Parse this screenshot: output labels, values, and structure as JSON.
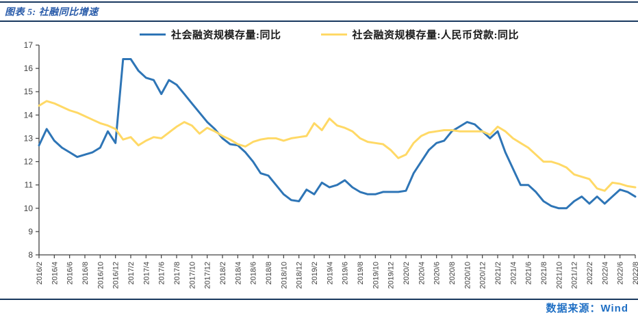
{
  "header": {
    "title": "图表 5: 社融同比增速"
  },
  "footer": {
    "source": "数据来源：Wind"
  },
  "colors": {
    "title_text": "#2A5CAA",
    "footer_text": "#1F6FC4",
    "rule": "#17375E",
    "axis_line": "#404040",
    "tick_text": "#404040",
    "series1": "#2E75B6",
    "series2": "#FFD966"
  },
  "chart_data": {
    "type": "line",
    "title": "图表 5: 社融同比增速",
    "xlabel": "",
    "ylabel": "",
    "ylim": [
      8,
      17
    ],
    "y_ticks": [
      8,
      9,
      10,
      11,
      12,
      13,
      14,
      15,
      16,
      17
    ],
    "x_tick_every": 2,
    "grid": false,
    "legend_position": "top",
    "x": [
      "2016/2",
      "2016/3",
      "2016/4",
      "2016/5",
      "2016/6",
      "2016/7",
      "2016/8",
      "2016/9",
      "2016/10",
      "2016/11",
      "2016/12",
      "2017/1",
      "2017/2",
      "2017/3",
      "2017/4",
      "2017/5",
      "2017/6",
      "2017/7",
      "2017/8",
      "2017/9",
      "2017/10",
      "2017/11",
      "2017/12",
      "2018/1",
      "2018/2",
      "2018/3",
      "2018/4",
      "2018/5",
      "2018/6",
      "2018/7",
      "2018/8",
      "2018/9",
      "2018/10",
      "2018/11",
      "2018/12",
      "2019/1",
      "2019/2",
      "2019/3",
      "2019/4",
      "2019/5",
      "2019/6",
      "2019/7",
      "2019/8",
      "2019/9",
      "2019/10",
      "2019/11",
      "2019/12",
      "2020/1",
      "2020/2",
      "2020/3",
      "2020/4",
      "2020/5",
      "2020/6",
      "2020/7",
      "2020/8",
      "2020/9",
      "2020/10",
      "2020/11",
      "2020/12",
      "2021/1",
      "2021/2",
      "2021/3",
      "2021/4",
      "2021/5",
      "2021/6",
      "2021/7",
      "2021/8",
      "2021/9",
      "2021/10",
      "2021/11",
      "2021/12",
      "2022/1",
      "2022/2",
      "2022/3",
      "2022/4",
      "2022/5",
      "2022/6",
      "2022/7",
      "2022/8"
    ],
    "series": [
      {
        "name": "社会融资规模存量:同比",
        "color": "#2E75B6",
        "values": [
          12.7,
          13.4,
          12.9,
          12.6,
          12.4,
          12.2,
          12.3,
          12.4,
          12.6,
          13.3,
          12.8,
          16.4,
          16.4,
          15.9,
          15.6,
          15.5,
          14.9,
          15.5,
          15.3,
          14.9,
          14.5,
          14.1,
          13.7,
          13.4,
          13.0,
          12.75,
          12.7,
          12.4,
          12.0,
          11.5,
          11.4,
          11.0,
          10.6,
          10.35,
          10.3,
          10.8,
          10.6,
          11.1,
          10.9,
          11.0,
          11.2,
          10.9,
          10.7,
          10.6,
          10.6,
          10.7,
          10.7,
          10.7,
          10.75,
          11.5,
          12.0,
          12.5,
          12.8,
          12.9,
          13.3,
          13.5,
          13.7,
          13.6,
          13.3,
          13.0,
          13.3,
          12.4,
          11.7,
          11.0,
          11.0,
          10.7,
          10.3,
          10.1,
          10.0,
          10.0,
          10.3,
          10.5,
          10.2,
          10.5,
          10.2,
          10.5,
          10.8,
          10.7,
          10.5
        ]
      },
      {
        "name": "社会融资规模存量:人民币贷款:同比",
        "color": "#FFD966",
        "values": [
          14.4,
          14.6,
          14.5,
          14.35,
          14.2,
          14.1,
          13.95,
          13.8,
          13.65,
          13.55,
          13.4,
          12.95,
          13.05,
          12.7,
          12.9,
          13.05,
          13.0,
          13.25,
          13.5,
          13.7,
          13.55,
          13.2,
          13.45,
          13.3,
          13.1,
          12.95,
          12.75,
          12.65,
          12.85,
          12.95,
          13.0,
          13.0,
          12.9,
          13.0,
          13.05,
          13.1,
          13.65,
          13.35,
          13.85,
          13.55,
          13.45,
          13.3,
          13.0,
          12.85,
          12.8,
          12.75,
          12.5,
          12.15,
          12.3,
          12.8,
          13.1,
          13.25,
          13.3,
          13.35,
          13.35,
          13.3,
          13.3,
          13.3,
          13.3,
          13.15,
          13.5,
          13.3,
          13.0,
          12.8,
          12.6,
          12.3,
          12.0,
          12.0,
          11.9,
          11.75,
          11.45,
          11.35,
          11.25,
          10.85,
          10.75,
          11.1,
          11.05,
          10.95,
          10.9
        ]
      }
    ]
  }
}
